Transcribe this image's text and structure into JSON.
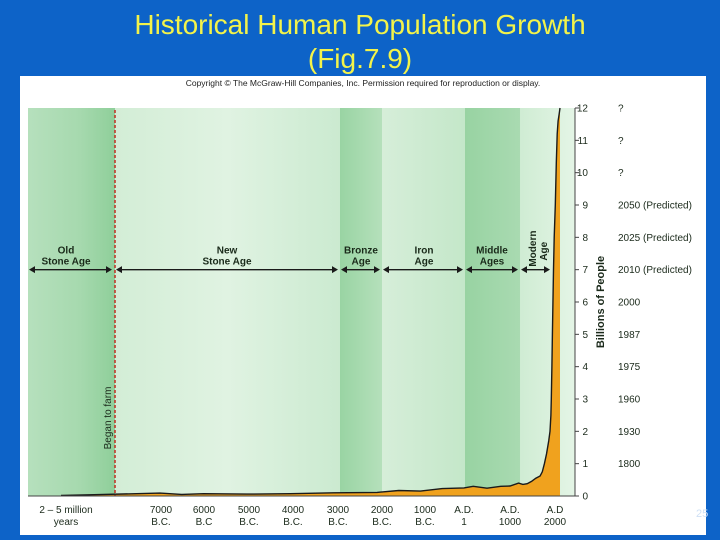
{
  "slide": {
    "title_line1": "Historical Human Population Growth",
    "title_line2": "(Fig.7.9)",
    "copyright": "Copyright © The McGraw-Hill Companies, Inc. Permission required for reproduction or display.",
    "slide_number": "25"
  },
  "chart_data": {
    "type": "area",
    "title": "",
    "xlabel": "",
    "ylabel": "Billions of People",
    "ylim": [
      0,
      12
    ],
    "yticks": [
      "0",
      "1",
      "2",
      "3",
      "4",
      "5",
      "6",
      "7",
      "8",
      "9",
      "10",
      "11",
      "12"
    ],
    "x_tick_labels": [
      {
        "line1": "2 – 5 million",
        "line2": "years"
      },
      {
        "line1": "7000",
        "line2": "B.C."
      },
      {
        "line1": "6000",
        "line2": "B.C"
      },
      {
        "line1": "5000",
        "line2": "B.C."
      },
      {
        "line1": "4000",
        "line2": "B.C."
      },
      {
        "line1": "3000",
        "line2": "B.C."
      },
      {
        "line1": "2000",
        "line2": "B.C."
      },
      {
        "line1": "1000",
        "line2": "B.C."
      },
      {
        "line1": "A.D.",
        "line2": "1"
      },
      {
        "line1": "A.D.",
        "line2": "1000"
      },
      {
        "line1": "A.D",
        "line2": "2000"
      }
    ],
    "year_labels": [
      {
        "value": 12,
        "label": "?"
      },
      {
        "value": 11,
        "label": "?"
      },
      {
        "value": 10,
        "label": "?"
      },
      {
        "value": 9,
        "label": "2050 (Predicted)"
      },
      {
        "value": 8,
        "label": "2025 (Predicted)"
      },
      {
        "value": 7,
        "label": "2010 (Predicted)"
      },
      {
        "value": 6,
        "label": "2000"
      },
      {
        "value": 5,
        "label": "1987"
      },
      {
        "value": 4,
        "label": "1975"
      },
      {
        "value": 3,
        "label": "1960"
      },
      {
        "value": 2,
        "label": "1930"
      },
      {
        "value": 1,
        "label": "1800"
      }
    ],
    "eras": [
      {
        "line1": "Old",
        "line2": "Stone Age"
      },
      {
        "line1": "New",
        "line2": "Stone Age"
      },
      {
        "line1": "Bronze",
        "line2": "Age"
      },
      {
        "line1": "Iron",
        "line2": "Age"
      },
      {
        "line1": "Middle",
        "line2": "Ages"
      },
      {
        "line1": "Modern",
        "line2": "Age"
      }
    ],
    "annotation": "Began to farm",
    "series": [
      {
        "values": [
          [
            -8500,
            0.02
          ],
          [
            -8000,
            0.04
          ],
          [
            -7000,
            0.09
          ],
          [
            -6500,
            0.05
          ],
          [
            -6000,
            0.07
          ],
          [
            -5000,
            0.06
          ],
          [
            -4000,
            0.07
          ],
          [
            -3000,
            0.1
          ],
          [
            -2000,
            0.11
          ],
          [
            -1500,
            0.17
          ],
          [
            -1000,
            0.15
          ],
          [
            -500,
            0.23
          ],
          [
            1,
            0.25
          ],
          [
            200,
            0.3
          ],
          [
            500,
            0.24
          ],
          [
            800,
            0.3
          ],
          [
            1000,
            0.31
          ],
          [
            1200,
            0.4
          ],
          [
            1300,
            0.36
          ],
          [
            1400,
            0.38
          ],
          [
            1500,
            0.45
          ],
          [
            1600,
            0.55
          ],
          [
            1700,
            0.62
          ],
          [
            1750,
            0.75
          ],
          [
            1800,
            1.0
          ],
          [
            1850,
            1.3
          ],
          [
            1900,
            1.7
          ],
          [
            1930,
            2.0
          ],
          [
            1950,
            2.5
          ],
          [
            1960,
            3.0
          ],
          [
            1975,
            4.0
          ],
          [
            1987,
            5.0
          ],
          [
            2000,
            6.1
          ],
          [
            2010,
            7.0
          ],
          [
            2025,
            8.0
          ],
          [
            2050,
            9.0
          ],
          [
            2070,
            10.3
          ],
          [
            2090,
            11.2
          ],
          [
            2110,
            11.6
          ],
          [
            2130,
            11.8
          ],
          [
            2150,
            12.0
          ]
        ]
      }
    ]
  }
}
